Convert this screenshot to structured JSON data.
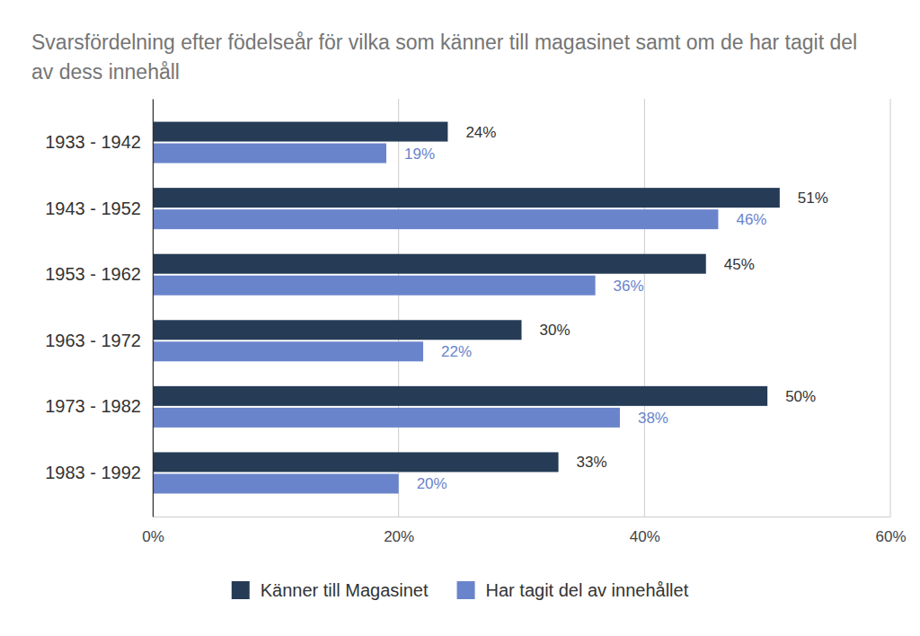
{
  "chart_data": {
    "type": "bar",
    "orientation": "horizontal",
    "title": "Svarsfördelning efter födelseår för vilka som känner till magasinet samt om de har tagit del av dess innehåll",
    "categories": [
      "1933 - 1942",
      "1943 - 1952",
      "1953 - 1962",
      "1963 - 1972",
      "1973 - 1982",
      "1983 - 1992"
    ],
    "series": [
      {
        "name": "Känner till Magasinet",
        "color": "#253b56",
        "values": [
          24,
          51,
          45,
          30,
          50,
          33
        ],
        "value_labels": [
          "24%",
          "51%",
          "45%",
          "30%",
          "50%",
          "33%"
        ]
      },
      {
        "name": "Har tagit del av innehållet",
        "color": "#6a84cc",
        "values": [
          19,
          46,
          36,
          22,
          38,
          20
        ],
        "value_labels": [
          "19%",
          "46%",
          "36%",
          "22%",
          "38%",
          "20%"
        ]
      }
    ],
    "xlim": [
      0,
      60
    ],
    "xticks": [
      {
        "value": 0,
        "label": "0%"
      },
      {
        "value": 20,
        "label": "20%"
      },
      {
        "value": 40,
        "label": "40%"
      },
      {
        "value": 60,
        "label": "60%"
      }
    ],
    "grid": true,
    "data_labels": true,
    "legend": "bottom"
  }
}
